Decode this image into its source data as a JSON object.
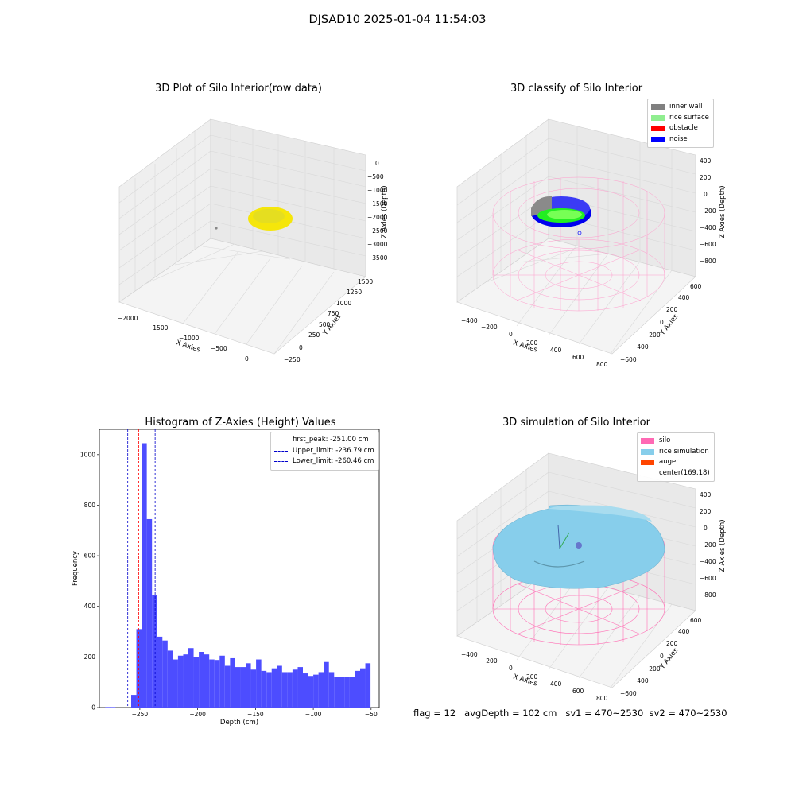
{
  "figure": {
    "title": "DJSAD10 2025-01-04 11:54:03",
    "status_line": {
      "flag": "flag = 12",
      "avg_depth": "avgDepth = 102 cm",
      "sv1": "sv1 = 470~2530",
      "sv2": "sv2 = 470~2530"
    }
  },
  "chart_data": [
    {
      "type": "scatter",
      "title": "3D Plot of Silo Interior(row data)",
      "xlabel": "X Axies",
      "ylabel": "Y Axies",
      "zlabel": "Z Axies (Depth)",
      "x_ticks": [
        "−2000",
        "−1500",
        "−1000",
        "−500",
        "0"
      ],
      "y_ticks": [
        "−250",
        "0",
        "250",
        "500",
        "750",
        "1000",
        "1250",
        "1500"
      ],
      "z_ticks": [
        "0",
        "−500",
        "−1000",
        "−1500",
        "−2000",
        "−2500",
        "−3000",
        "−3500"
      ],
      "point_color": "#f5e60a"
    },
    {
      "type": "scatter",
      "title": "3D classify of Silo Interior",
      "xlabel": "X Axies",
      "ylabel": "Y Axies",
      "zlabel": "Z Axies (Depth)",
      "x_ticks": [
        "−400",
        "−200",
        "0",
        "200",
        "400",
        "600",
        "800"
      ],
      "y_ticks": [
        "−600",
        "−400",
        "−200",
        "0",
        "200",
        "400",
        "600"
      ],
      "z_ticks": [
        "400",
        "200",
        "0",
        "−200",
        "−400",
        "−600",
        "−800"
      ],
      "legend": [
        {
          "label": "inner wall",
          "color": "#808080"
        },
        {
          "label": "rice surface",
          "color": "#90ee90"
        },
        {
          "label": "obstacle",
          "color": "#ff0000"
        },
        {
          "label": "noise",
          "color": "#0000ff"
        }
      ]
    },
    {
      "type": "bar",
      "title": "Histogram of Z-Axies (Height) Values",
      "xlabel": "Depth (cm)",
      "ylabel": "Frequency",
      "xlim": [
        -285,
        -43
      ],
      "ylim": [
        0,
        1100
      ],
      "x_ticks": [
        -250,
        -200,
        -150,
        -100,
        -50
      ],
      "x_tick_labels": [
        "−250",
        "−200",
        "−150",
        "−100",
        "−50"
      ],
      "y_ticks": [
        0,
        200,
        400,
        600,
        800,
        1000
      ],
      "bar_color": "#4d4dff",
      "bin_start": -280,
      "bin_width": 4.5,
      "values": [
        2,
        2,
        0,
        0,
        0,
        50,
        310,
        1045,
        745,
        445,
        280,
        265,
        225,
        190,
        205,
        210,
        235,
        200,
        220,
        210,
        190,
        188,
        205,
        165,
        195,
        160,
        160,
        175,
        150,
        190,
        145,
        140,
        155,
        165,
        140,
        140,
        150,
        160,
        135,
        125,
        130,
        140,
        180,
        140,
        120,
        120,
        122,
        120,
        145,
        155,
        175
      ],
      "vlines": [
        {
          "label": "first_peak: -251.00 cm",
          "x": -251.0,
          "color": "#ff0000"
        },
        {
          "label": "Upper_limit: -236.79 cm",
          "x": -236.79,
          "color": "#0000cc"
        },
        {
          "label": "Lower_limit: -260.46 cm",
          "x": -260.46,
          "color": "#0000cc"
        }
      ]
    },
    {
      "type": "scatter",
      "title": "3D simulation of Silo Interior",
      "xlabel": "X Axies",
      "ylabel": "Y Axies",
      "zlabel": "Z Axies (Depth)",
      "x_ticks": [
        "−400",
        "−200",
        "0",
        "200",
        "400",
        "600",
        "800"
      ],
      "y_ticks": [
        "−600",
        "−400",
        "−200",
        "0",
        "200",
        "400",
        "600"
      ],
      "z_ticks": [
        "400",
        "200",
        "0",
        "−200",
        "−400",
        "−600",
        "−800"
      ],
      "legend": [
        {
          "label": "silo",
          "color": "#ff69b4"
        },
        {
          "label": "rice simulation",
          "color": "#87ceeb"
        },
        {
          "label": "auger",
          "color": "#ff4500"
        },
        {
          "label": "center(169,18)",
          "color": "#ffffff"
        }
      ]
    }
  ]
}
